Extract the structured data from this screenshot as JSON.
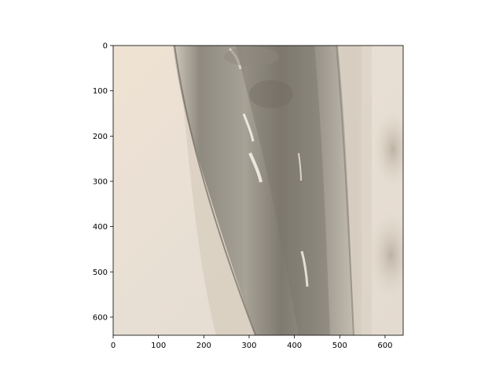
{
  "chart_data": {
    "type": "image",
    "title": "",
    "xlabel": "",
    "ylabel": "",
    "xlim": [
      0,
      640
    ],
    "ylim": [
      640,
      0
    ],
    "x_ticks": [
      0,
      100,
      200,
      300,
      400,
      500,
      600
    ],
    "y_ticks": [
      0,
      100,
      200,
      300,
      400,
      500,
      600
    ],
    "x_tick_labels": [
      "0",
      "100",
      "200",
      "300",
      "400",
      "500",
      "600"
    ],
    "y_tick_labels": [
      "0",
      "100",
      "200",
      "300",
      "400",
      "500",
      "600"
    ],
    "grid": false,
    "legend": "none",
    "image_content": "photo-of-clear-plastic-tube"
  },
  "colors": {
    "background": "#ffffff",
    "axis": "#000000",
    "wall_light": "#ece2d6",
    "tube_dark": "#8f8a80",
    "tube_mid": "#b7b1a6",
    "highlight": "#f3efe7"
  }
}
